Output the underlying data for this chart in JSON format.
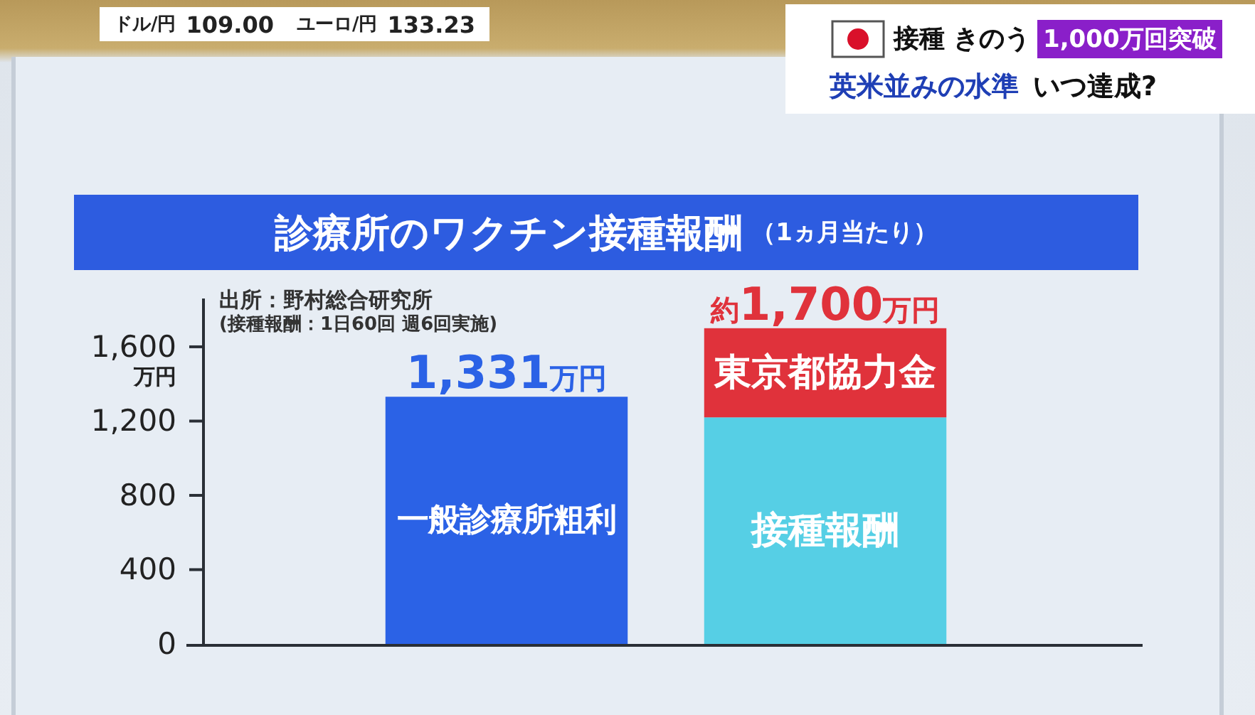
{
  "chart_data": {
    "type": "bar",
    "title": "診療所のワクチン接種報酬",
    "subtitle": "（1ヵ月当たり）",
    "ylabel": "万円",
    "categories": [
      null,
      null
    ],
    "stacked": true,
    "series": [
      {
        "name": "一般診療所粗利",
        "color": "#2b62e6",
        "values": [
          1331,
          null
        ]
      },
      {
        "name": "接種報酬",
        "color": "#56cfe5",
        "values": [
          null,
          1220
        ]
      },
      {
        "name": "東京都協力金",
        "color": "#e0323b",
        "values": [
          null,
          480
        ]
      }
    ],
    "totals": [
      "1,331万円",
      "約1,700万円"
    ],
    "ylim": [
      0,
      1860
    ],
    "yticks": [
      0,
      400,
      800,
      {
        "value": 1200,
        "label": "1,200"
      },
      {
        "value": 1600,
        "label": "1,600"
      }
    ],
    "annotations": [
      "出所：野村総合研究所",
      "(接種報酬：1日60回 週6回実施)",
      "ドル/円",
      "109.00",
      "ユーロ/円",
      "133.23",
      "接種",
      "きのう",
      "1,000万回突破",
      "英米並みの水準",
      "いつ達成?"
    ]
  }
}
